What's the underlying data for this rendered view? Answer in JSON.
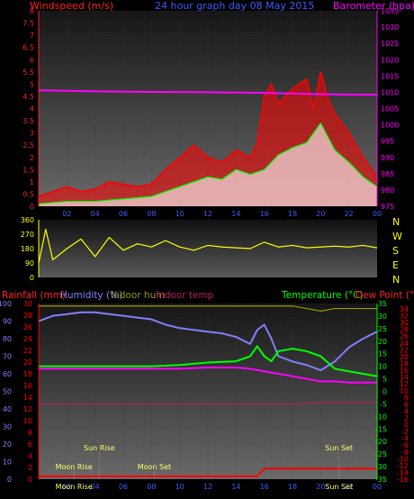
{
  "header": {
    "left": "Windspeed (m/s)",
    "center": "24 hour graph day  08 May 2015",
    "right": "Barometer (hpa)"
  },
  "colors": {
    "wind": "#ff0000",
    "gust_avg": "#00ff00",
    "baro": "#ff00ff",
    "direction": "#ffff00",
    "axis_left": "#ff2222",
    "axis_right": "#ff00ff",
    "ticks": "#3b5bff",
    "humidity": "#8080ff",
    "temperature": "#00ff00",
    "dewpoint": "#ff0000",
    "indoor_hum": "#999900",
    "indoor_temp": "#b02060",
    "rain": "#ff0000",
    "white": "#ffffff"
  },
  "x_ticks": [
    "02",
    "04",
    "06",
    "08",
    "10",
    "12",
    "14",
    "16",
    "18",
    "20",
    "22",
    "00"
  ],
  "wind_chart": {
    "type": "line",
    "yleft_ticks": [
      "8",
      "7.5",
      "7",
      "6.5",
      "6",
      "5.5",
      "5",
      "4.5",
      "4",
      "3.5",
      "3",
      "2.5",
      "2",
      "1.5",
      "1",
      "0.5",
      "0"
    ],
    "yright_ticks": [
      "1035",
      "1030",
      "1025",
      "1020",
      "1015",
      "1010",
      "1005",
      "1000",
      "995",
      "990",
      "985",
      "980",
      "975"
    ],
    "ylim_left": [
      0,
      8
    ],
    "ylim_right": [
      975,
      1035
    ],
    "series": [
      {
        "key": "wind",
        "x": [
          0,
          1,
          2,
          3,
          4,
          5,
          6,
          7,
          8,
          9,
          10,
          11,
          12,
          13,
          14,
          15,
          15.5,
          16,
          16.5,
          17,
          18,
          19,
          19.5,
          20,
          20.5,
          21,
          22,
          23,
          24
        ],
        "y": [
          0.4,
          0.6,
          0.8,
          0.6,
          0.7,
          1.0,
          0.9,
          0.8,
          0.9,
          1.5,
          2.0,
          2.5,
          2.0,
          1.8,
          2.3,
          2.0,
          2.6,
          4.5,
          5.0,
          4.2,
          4.8,
          5.2,
          4.0,
          5.5,
          4.4,
          3.8,
          3.0,
          2.0,
          1.2
        ]
      },
      {
        "key": "avg",
        "x": [
          0,
          2,
          4,
          6,
          8,
          9,
          10,
          11,
          12,
          13,
          14,
          15,
          16,
          17,
          18,
          19,
          20,
          21,
          22,
          23,
          24
        ],
        "y": [
          0.1,
          0.2,
          0.2,
          0.3,
          0.4,
          0.6,
          0.8,
          1.0,
          1.2,
          1.1,
          1.5,
          1.3,
          1.5,
          2.1,
          2.4,
          2.6,
          3.4,
          2.3,
          1.8,
          1.2,
          0.8
        ]
      },
      {
        "key": "baro",
        "x": [
          0,
          4,
          8,
          12,
          16,
          18,
          20,
          22,
          24
        ],
        "y": [
          1010.6,
          1010.3,
          1010.1,
          1010.0,
          1009.8,
          1009.6,
          1009.4,
          1009.3,
          1009.2
        ]
      }
    ]
  },
  "dir_chart": {
    "type": "line",
    "y_ticks": [
      "360",
      "270",
      "180",
      "90",
      "0"
    ],
    "ylim": [
      0,
      360
    ],
    "compass": [
      "N",
      "W",
      "S",
      "E",
      "N"
    ],
    "series": [
      {
        "key": "direction",
        "x": [
          0,
          0.5,
          1,
          2,
          3,
          4,
          5,
          6,
          7,
          8,
          9,
          10,
          11,
          12,
          13,
          14,
          15,
          16,
          17,
          18,
          19,
          20,
          21,
          22,
          23,
          24
        ],
        "y": [
          90,
          300,
          110,
          180,
          240,
          130,
          250,
          170,
          210,
          190,
          230,
          190,
          170,
          200,
          190,
          185,
          180,
          220,
          190,
          200,
          185,
          190,
          195,
          190,
          200,
          185
        ]
      }
    ]
  },
  "lower_chart": {
    "type": "line",
    "labels": {
      "rain": "Rainfall (mm)",
      "humidity": "Humidity (%)",
      "indoor_hum": "Indoor hum",
      "indoor_temp": "Indoor temp",
      "temperature": "Temperature (°C)",
      "dewpoint": "Dew Point (°C)"
    },
    "y_hum_ticks": [
      "100",
      "90",
      "80",
      "70",
      "60",
      "50",
      "40",
      "30",
      "20",
      "10",
      "0"
    ],
    "y_rain_ticks": [
      "30",
      "28",
      "26",
      "24",
      "22",
      "20",
      "18",
      "16",
      "14",
      "12",
      "10",
      "8",
      "6",
      "4",
      "2",
      "0"
    ],
    "y_temp_ticks": [
      "35",
      "30",
      "25",
      "20",
      "15",
      "10",
      "5",
      "0",
      "-5",
      "-10",
      "-15",
      "-20",
      "-25",
      "-30",
      "-35"
    ],
    "y_dew_ticks": [
      "34",
      "32",
      "30",
      "28",
      "26",
      "24",
      "22",
      "20",
      "18",
      "16",
      "14",
      "12",
      "10",
      "8",
      "6",
      "4",
      "2",
      "0",
      "-2",
      "-4",
      "-6",
      "-8",
      "-10",
      "-12",
      "-14",
      "-16"
    ],
    "hum_lim": [
      0,
      100
    ],
    "temp_lim": [
      -35,
      35
    ],
    "events": [
      {
        "label": "Moon Rise",
        "x": 2.5,
        "row": "low"
      },
      {
        "label": "Sun Rise",
        "x": 4.3,
        "row": "high"
      },
      {
        "label": "Moon Set",
        "x": 8.2,
        "row": "low"
      },
      {
        "label": "Sun Set",
        "x": 21.3,
        "row": "high"
      }
    ],
    "bottom_labels": [
      "Moon Rise",
      "Sun Set"
    ],
    "series": [
      {
        "key": "humidity",
        "x": [
          0,
          1,
          2,
          3,
          4,
          5,
          6,
          7,
          8,
          9,
          10,
          11,
          12,
          13,
          14,
          15,
          15.5,
          16,
          16.5,
          17,
          18,
          19,
          20,
          21,
          22,
          23,
          24
        ],
        "y": [
          90,
          93,
          94,
          95,
          95,
          94,
          93,
          92,
          91,
          88,
          86,
          85,
          84,
          83,
          81,
          77,
          85,
          88,
          80,
          70,
          67,
          65,
          62,
          67,
          75,
          80,
          84
        ]
      },
      {
        "key": "temperature",
        "x": [
          0,
          2,
          4,
          6,
          8,
          10,
          12,
          14,
          15,
          15.5,
          16,
          16.5,
          17,
          18,
          19,
          20,
          21,
          22,
          23,
          24
        ],
        "y": [
          10,
          10,
          10,
          10,
          10,
          10.5,
          11.5,
          12,
          14,
          18,
          14,
          12,
          16,
          17,
          16,
          14,
          9,
          8,
          7,
          6
        ]
      },
      {
        "key": "dewpoint",
        "x": [
          0,
          2,
          4,
          6,
          8,
          10,
          12,
          14,
          15,
          16,
          17,
          18,
          19,
          20,
          21,
          22,
          23,
          24
        ],
        "y": [
          9,
          9,
          9,
          9,
          9,
          9,
          9.5,
          9.5,
          9,
          8,
          7,
          6,
          5,
          4,
          4,
          3.5,
          3.5,
          3.5
        ]
      },
      {
        "key": "indoor_temp",
        "x": [
          0,
          3,
          6,
          9,
          12,
          15,
          18,
          20,
          22,
          24
        ],
        "y": [
          -5,
          -5,
          -5,
          -5,
          -5,
          -5,
          -5,
          -4.5,
          -4.5,
          -4.5
        ]
      },
      {
        "key": "indoor_hum",
        "x": [
          0,
          3,
          6,
          9,
          12,
          15,
          18,
          19,
          20,
          21,
          22,
          24
        ],
        "y": [
          34,
          34,
          34,
          34,
          34,
          34,
          34,
          33,
          32,
          33,
          33,
          33
        ]
      },
      {
        "key": "rain",
        "x": [
          0,
          15.5,
          16,
          24
        ],
        "y": [
          0.5,
          0.5,
          1.8,
          1.8
        ]
      }
    ]
  }
}
